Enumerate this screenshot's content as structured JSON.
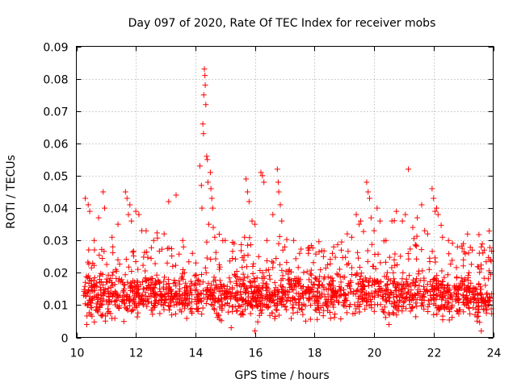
{
  "chart_data": {
    "type": "scatter",
    "title": "Day 097 of 2020, Rate Of TEC Index for receiver mobs",
    "xlabel": "GPS time / hours",
    "ylabel": "ROTI / TECUs",
    "xlim": [
      10,
      24
    ],
    "ylim": [
      0,
      0.09
    ],
    "x_ticks": [
      10,
      12,
      14,
      16,
      18,
      20,
      22,
      24
    ],
    "x_tick_labels": [
      "10",
      "12",
      "14",
      "16",
      "18",
      "20",
      "22",
      "24"
    ],
    "y_ticks": [
      0,
      0.01,
      0.02,
      0.03,
      0.04,
      0.05,
      0.06,
      0.07,
      0.08,
      0.09
    ],
    "y_tick_labels": [
      "0",
      "0.01",
      "0.02",
      "0.03",
      "0.04",
      "0.05",
      "0.06",
      "0.07",
      "0.08",
      "0.09"
    ],
    "grid": true,
    "marker": "+",
    "series": [
      {
        "name": "ROTI",
        "color": "#ff0000",
        "baseline_mean": 0.013,
        "baseline_spread": 0.006,
        "x_range": [
          10.25,
          23.95
        ],
        "points": [
          [
            10.3,
            0.043
          ],
          [
            10.4,
            0.041
          ],
          [
            10.45,
            0.039
          ],
          [
            10.6,
            0.03
          ],
          [
            10.75,
            0.037
          ],
          [
            10.9,
            0.045
          ],
          [
            10.95,
            0.04
          ],
          [
            11.2,
            0.031
          ],
          [
            11.4,
            0.035
          ],
          [
            11.65,
            0.045
          ],
          [
            11.7,
            0.043
          ],
          [
            11.75,
            0.038
          ],
          [
            11.8,
            0.041
          ],
          [
            11.85,
            0.036
          ],
          [
            12.0,
            0.039
          ],
          [
            12.1,
            0.038
          ],
          [
            12.2,
            0.033
          ],
          [
            12.6,
            0.03
          ],
          [
            12.95,
            0.032
          ],
          [
            13.1,
            0.042
          ],
          [
            13.35,
            0.044
          ],
          [
            13.6,
            0.028
          ],
          [
            13.9,
            0.026
          ],
          [
            14.15,
            0.053
          ],
          [
            14.2,
            0.047
          ],
          [
            14.22,
            0.04
          ],
          [
            14.25,
            0.066
          ],
          [
            14.27,
            0.063
          ],
          [
            14.28,
            0.075
          ],
          [
            14.3,
            0.083
          ],
          [
            14.32,
            0.081
          ],
          [
            14.33,
            0.078
          ],
          [
            14.35,
            0.072
          ],
          [
            14.38,
            0.056
          ],
          [
            14.4,
            0.055
          ],
          [
            14.42,
            0.048
          ],
          [
            14.45,
            0.035
          ],
          [
            14.5,
            0.051
          ],
          [
            14.52,
            0.046
          ],
          [
            14.55,
            0.043
          ],
          [
            14.58,
            0.04
          ],
          [
            14.6,
            0.034
          ],
          [
            14.65,
            0.031
          ],
          [
            15.0,
            0.03
          ],
          [
            15.3,
            0.029
          ],
          [
            15.7,
            0.049
          ],
          [
            15.75,
            0.045
          ],
          [
            15.8,
            0.042
          ],
          [
            15.9,
            0.036
          ],
          [
            16.0,
            0.035
          ],
          [
            16.2,
            0.051
          ],
          [
            16.25,
            0.05
          ],
          [
            16.3,
            0.048
          ],
          [
            16.4,
            0.03
          ],
          [
            16.6,
            0.038
          ],
          [
            16.75,
            0.052
          ],
          [
            16.78,
            0.048
          ],
          [
            16.8,
            0.045
          ],
          [
            16.85,
            0.041
          ],
          [
            16.9,
            0.036
          ],
          [
            17.0,
            0.028
          ],
          [
            17.3,
            0.03
          ],
          [
            17.5,
            0.026
          ],
          [
            17.8,
            0.027
          ],
          [
            18.3,
            0.025
          ],
          [
            18.6,
            0.026
          ],
          [
            18.9,
            0.027
          ],
          [
            19.1,
            0.032
          ],
          [
            19.25,
            0.031
          ],
          [
            19.4,
            0.038
          ],
          [
            19.5,
            0.035
          ],
          [
            19.55,
            0.036
          ],
          [
            19.75,
            0.048
          ],
          [
            19.8,
            0.045
          ],
          [
            19.85,
            0.043
          ],
          [
            19.9,
            0.037
          ],
          [
            20.0,
            0.033
          ],
          [
            20.1,
            0.04
          ],
          [
            20.2,
            0.036
          ],
          [
            20.4,
            0.03
          ],
          [
            20.6,
            0.036
          ],
          [
            20.75,
            0.039
          ],
          [
            20.95,
            0.036
          ],
          [
            21.05,
            0.038
          ],
          [
            21.15,
            0.052
          ],
          [
            21.3,
            0.034
          ],
          [
            21.45,
            0.037
          ],
          [
            21.6,
            0.041
          ],
          [
            21.7,
            0.033
          ],
          [
            21.8,
            0.032
          ],
          [
            21.95,
            0.046
          ],
          [
            22.0,
            0.043
          ],
          [
            22.05,
            0.039
          ],
          [
            22.1,
            0.04
          ],
          [
            22.15,
            0.038
          ],
          [
            22.3,
            0.031
          ],
          [
            22.5,
            0.03
          ],
          [
            22.8,
            0.028
          ],
          [
            23.0,
            0.029
          ],
          [
            23.3,
            0.027
          ],
          [
            23.6,
            0.028
          ],
          [
            23.7,
            0.027
          ],
          [
            23.9,
            0.024
          ],
          [
            16.0,
            0.002
          ],
          [
            23.6,
            0.002
          ],
          [
            10.35,
            0.004
          ],
          [
            15.2,
            0.003
          ],
          [
            20.5,
            0.004
          ]
        ]
      }
    ]
  }
}
